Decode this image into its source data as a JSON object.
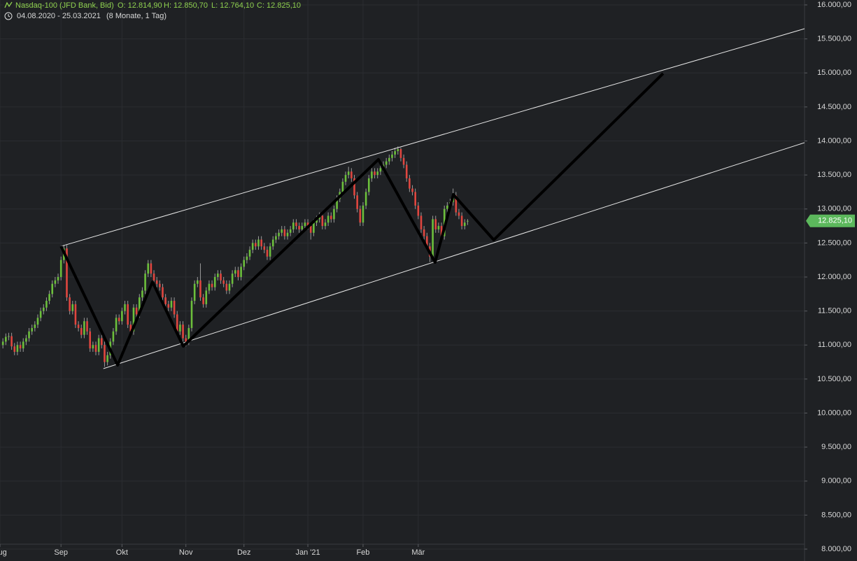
{
  "chart_data": {
    "type": "candlestick",
    "title": "Nasdaq-100 (JFD Bank, Bid)",
    "ohlc_labels": [
      "O: 12.814,90",
      "H: 12.850,70",
      "L: 12.764,10",
      "C: 12.825,10"
    ],
    "date_range": "04.08.2020 - 25.03.2021",
    "period": "(8 Monate, 1 Tag)",
    "up_color": "#6cbf3c",
    "down_color": "#e0463f",
    "grid": true,
    "xlim": [
      -1,
      276
    ],
    "xticks": [
      {
        "value": -1,
        "label": "Aug"
      },
      {
        "value": 20,
        "label": "Sep"
      },
      {
        "value": 41,
        "label": "Okt"
      },
      {
        "value": 63,
        "label": "Nov"
      },
      {
        "value": 83,
        "label": "Dez"
      },
      {
        "value": 105,
        "label": "Jan '21"
      },
      {
        "value": 124,
        "label": "Feb"
      },
      {
        "value": 143,
        "label": "Mär"
      }
    ],
    "ylim": [
      8000,
      16000
    ],
    "yticks": [
      {
        "value": 8000,
        "label": "8.000,00"
      },
      {
        "value": 8500,
        "label": "8.500,00"
      },
      {
        "value": 9000,
        "label": "9.000,00"
      },
      {
        "value": 9500,
        "label": "9.500,00"
      },
      {
        "value": 10000,
        "label": "10.000,00"
      },
      {
        "value": 10500,
        "label": "10.500,00"
      },
      {
        "value": 11000,
        "label": "11.000,00"
      },
      {
        "value": 11500,
        "label": "11.500,00"
      },
      {
        "value": 12000,
        "label": "12.000,00"
      },
      {
        "value": 12500,
        "label": "12.500,00"
      },
      {
        "value": 13000,
        "label": "13.000,00"
      },
      {
        "value": 13500,
        "label": "13.500,00"
      },
      {
        "value": 14000,
        "label": "14.000,00"
      },
      {
        "value": 14500,
        "label": "14.500,00"
      },
      {
        "value": 15000,
        "label": "15.000,00"
      },
      {
        "value": 15500,
        "label": "15.500,00"
      },
      {
        "value": 16000,
        "label": "16.000,00"
      }
    ],
    "last_price": {
      "value": 12825.1,
      "label": "12.825,10"
    },
    "last_price_color": "#5cb85c",
    "candles": [
      [
        11000,
        11100,
        10950,
        11050
      ],
      [
        11050,
        11170,
        11000,
        11120
      ],
      [
        11120,
        11180,
        11070,
        11130
      ],
      [
        11130,
        11180,
        10930,
        10980
      ],
      [
        10980,
        11030,
        10850,
        10900
      ],
      [
        10900,
        11050,
        10850,
        11000
      ],
      [
        11000,
        11050,
        10900,
        10950
      ],
      [
        10950,
        11100,
        10900,
        11050
      ],
      [
        11050,
        11150,
        11000,
        11100
      ],
      [
        11100,
        11250,
        11050,
        11200
      ],
      [
        11200,
        11300,
        11150,
        11250
      ],
      [
        11250,
        11350,
        11200,
        11300
      ],
      [
        11300,
        11450,
        11250,
        11400
      ],
      [
        11400,
        11550,
        11350,
        11500
      ],
      [
        11500,
        11600,
        11450,
        11550
      ],
      [
        11550,
        11700,
        11500,
        11650
      ],
      [
        11650,
        11800,
        11600,
        11750
      ],
      [
        11750,
        11950,
        11700,
        11900
      ],
      [
        11900,
        12000,
        11850,
        11950
      ],
      [
        11950,
        12050,
        11900,
        12000
      ],
      [
        12000,
        12300,
        11950,
        12250
      ],
      [
        12250,
        12470,
        12200,
        12420
      ],
      [
        12420,
        12470,
        11650,
        11700
      ],
      [
        11700,
        11750,
        11450,
        11500
      ],
      [
        11500,
        11650,
        11450,
        11600
      ],
      [
        11600,
        11650,
        11250,
        11300
      ],
      [
        11300,
        11350,
        11200,
        11250
      ],
      [
        11250,
        11300,
        11100,
        11150
      ],
      [
        11150,
        11400,
        11100,
        11350
      ],
      [
        11350,
        11400,
        11150,
        11200
      ],
      [
        11200,
        11250,
        10900,
        10950
      ],
      [
        10950,
        11050,
        10900,
        11000
      ],
      [
        11000,
        11050,
        10850,
        10900
      ],
      [
        10900,
        11150,
        10850,
        11100
      ],
      [
        11100,
        11150,
        10950,
        11000
      ],
      [
        11000,
        11050,
        10680,
        10750
      ],
      [
        10750,
        10900,
        10700,
        10850
      ],
      [
        10850,
        11100,
        10800,
        11050
      ],
      [
        11050,
        11250,
        11000,
        11200
      ],
      [
        11200,
        11450,
        11150,
        11400
      ],
      [
        11400,
        11450,
        11300,
        11350
      ],
      [
        11350,
        11550,
        11300,
        11500
      ],
      [
        11500,
        11650,
        11450,
        11600
      ],
      [
        11600,
        11650,
        11250,
        11300
      ],
      [
        11300,
        11350,
        11150,
        11200
      ],
      [
        11200,
        11600,
        11150,
        11550
      ],
      [
        11550,
        11600,
        11400,
        11450
      ],
      [
        11450,
        11750,
        11400,
        11700
      ],
      [
        11700,
        11850,
        11650,
        11800
      ],
      [
        11800,
        12100,
        11750,
        12050
      ],
      [
        12050,
        12250,
        12000,
        12200
      ],
      [
        12200,
        12250,
        12000,
        12050
      ],
      [
        12050,
        12100,
        11900,
        11950
      ],
      [
        11950,
        12000,
        11850,
        11900
      ],
      [
        11900,
        11950,
        11800,
        11850
      ],
      [
        11850,
        11900,
        11650,
        11700
      ],
      [
        11700,
        11750,
        11550,
        11600
      ],
      [
        11600,
        11650,
        11500,
        11550
      ],
      [
        11550,
        11700,
        11500,
        11650
      ],
      [
        11650,
        11700,
        11400,
        11450
      ],
      [
        11450,
        11500,
        11150,
        11200
      ],
      [
        11200,
        11350,
        11150,
        11300
      ],
      [
        11300,
        11350,
        11050,
        11100
      ],
      [
        11100,
        11150,
        10980,
        11050
      ],
      [
        11050,
        11300,
        11000,
        11250
      ],
      [
        11250,
        11700,
        11200,
        11650
      ],
      [
        11650,
        11950,
        11600,
        11900
      ],
      [
        11900,
        12000,
        11850,
        11950
      ],
      [
        11950,
        12200,
        11650,
        11700
      ],
      [
        11700,
        11750,
        11550,
        11600
      ],
      [
        11600,
        11850,
        11550,
        11800
      ],
      [
        11800,
        11950,
        11750,
        11900
      ],
      [
        11900,
        11950,
        11800,
        11850
      ],
      [
        11850,
        12050,
        11800,
        12000
      ],
      [
        12000,
        12100,
        11950,
        12050
      ],
      [
        12050,
        12100,
        11900,
        11950
      ],
      [
        11950,
        12000,
        11850,
        11900
      ],
      [
        11900,
        11950,
        11750,
        11800
      ],
      [
        11800,
        11950,
        11750,
        11900
      ],
      [
        11900,
        12100,
        11850,
        12050
      ],
      [
        12050,
        12150,
        12000,
        12100
      ],
      [
        12100,
        12150,
        11950,
        12000
      ],
      [
        12000,
        12200,
        11950,
        12150
      ],
      [
        12150,
        12300,
        12100,
        12250
      ],
      [
        12250,
        12350,
        12200,
        12300
      ],
      [
        12300,
        12450,
        12250,
        12400
      ],
      [
        12400,
        12550,
        12350,
        12500
      ],
      [
        12500,
        12550,
        12400,
        12450
      ],
      [
        12450,
        12600,
        12400,
        12550
      ],
      [
        12550,
        12600,
        12400,
        12450
      ],
      [
        12450,
        12500,
        12350,
        12400
      ],
      [
        12400,
        12450,
        12250,
        12300
      ],
      [
        12300,
        12500,
        12250,
        12450
      ],
      [
        12450,
        12600,
        12400,
        12550
      ],
      [
        12550,
        12650,
        12500,
        12600
      ],
      [
        12600,
        12700,
        12550,
        12650
      ],
      [
        12650,
        12750,
        12600,
        12700
      ],
      [
        12700,
        12750,
        12550,
        12600
      ],
      [
        12600,
        12700,
        12550,
        12650
      ],
      [
        12650,
        12750,
        12600,
        12700
      ],
      [
        12700,
        12850,
        12650,
        12800
      ],
      [
        12800,
        12850,
        12700,
        12750
      ],
      [
        12750,
        12800,
        12650,
        12700
      ],
      [
        12700,
        12800,
        12650,
        12750
      ],
      [
        12750,
        12850,
        12700,
        12800
      ],
      [
        12800,
        12850,
        12700,
        12750
      ],
      [
        12750,
        12800,
        12550,
        12650
      ],
      [
        12650,
        12850,
        12600,
        12800
      ],
      [
        12800,
        12900,
        12750,
        12850
      ],
      [
        12850,
        12950,
        12800,
        12900
      ],
      [
        12900,
        12950,
        12700,
        12750
      ],
      [
        12750,
        12850,
        12700,
        12800
      ],
      [
        12800,
        12950,
        12750,
        12900
      ],
      [
        12900,
        12950,
        12800,
        12850
      ],
      [
        12850,
        13050,
        12800,
        13000
      ],
      [
        13000,
        13200,
        12950,
        13150
      ],
      [
        13150,
        13300,
        13100,
        13250
      ],
      [
        13250,
        13450,
        13200,
        13400
      ],
      [
        13400,
        13550,
        13350,
        13500
      ],
      [
        13500,
        13620,
        13450,
        13550
      ],
      [
        13550,
        13600,
        13400,
        13450
      ],
      [
        13450,
        13500,
        13150,
        13200
      ],
      [
        13200,
        13250,
        12950,
        13000
      ],
      [
        13000,
        13050,
        12750,
        12800
      ],
      [
        12800,
        13100,
        12750,
        13050
      ],
      [
        13050,
        13300,
        13000,
        13250
      ],
      [
        13250,
        13500,
        13200,
        13450
      ],
      [
        13450,
        13600,
        13400,
        13550
      ],
      [
        13550,
        13600,
        13450,
        13500
      ],
      [
        13500,
        13600,
        13450,
        13550
      ],
      [
        13550,
        13650,
        13500,
        13600
      ],
      [
        13600,
        13700,
        13550,
        13650
      ],
      [
        13650,
        13750,
        13600,
        13700
      ],
      [
        13700,
        13800,
        13650,
        13750
      ],
      [
        13750,
        13850,
        13700,
        13800
      ],
      [
        13800,
        13900,
        13750,
        13850
      ],
      [
        13850,
        13920,
        13800,
        13880
      ],
      [
        13880,
        13900,
        13700,
        13750
      ],
      [
        13750,
        13800,
        13600,
        13650
      ],
      [
        13650,
        13700,
        13400,
        13450
      ],
      [
        13450,
        13500,
        13250,
        13300
      ],
      [
        13300,
        13350,
        13200,
        13250
      ],
      [
        13250,
        13300,
        13000,
        13050
      ],
      [
        13050,
        13100,
        12850,
        12900
      ],
      [
        12900,
        12950,
        12650,
        12700
      ],
      [
        12700,
        12750,
        12550,
        12600
      ],
      [
        12600,
        12650,
        12400,
        12450
      ],
      [
        12450,
        12500,
        12220,
        12300
      ],
      [
        12300,
        12900,
        12250,
        12850
      ],
      [
        12850,
        12900,
        12650,
        12700
      ],
      [
        12700,
        12800,
        12650,
        12750
      ],
      [
        12750,
        12800,
        12550,
        12600
      ],
      [
        12600,
        13050,
        12550,
        13000
      ],
      [
        13000,
        13100,
        12950,
        13050
      ],
      [
        13050,
        13150,
        13000,
        13100
      ],
      [
        13100,
        13300,
        13050,
        13200
      ],
      [
        13200,
        13250,
        12900,
        12950
      ],
      [
        12950,
        13000,
        12850,
        12900
      ],
      [
        12900,
        12950,
        12700,
        12750
      ],
      [
        12750,
        12850,
        12700,
        12800
      ],
      [
        12814.9,
        12850.7,
        12764.1,
        12825.1
      ]
    ],
    "trendlines": [
      {
        "x": [
          20,
          276
        ],
        "y": [
          12452,
          15650
        ],
        "color": "#e8e8e8"
      },
      {
        "x": [
          34.6,
          276
        ],
        "y": [
          10653,
          13975
        ],
        "color": "#e8e8e8"
      }
    ],
    "path": {
      "x": [
        20,
        39.5,
        51.5,
        62.1,
        129.3,
        148.8,
        155.1,
        169,
        227.3
      ],
      "y": [
        12452,
        10704,
        11928,
        10982,
        13728,
        12216,
        13213,
        12545,
        14992
      ],
      "color": "#000000"
    }
  }
}
